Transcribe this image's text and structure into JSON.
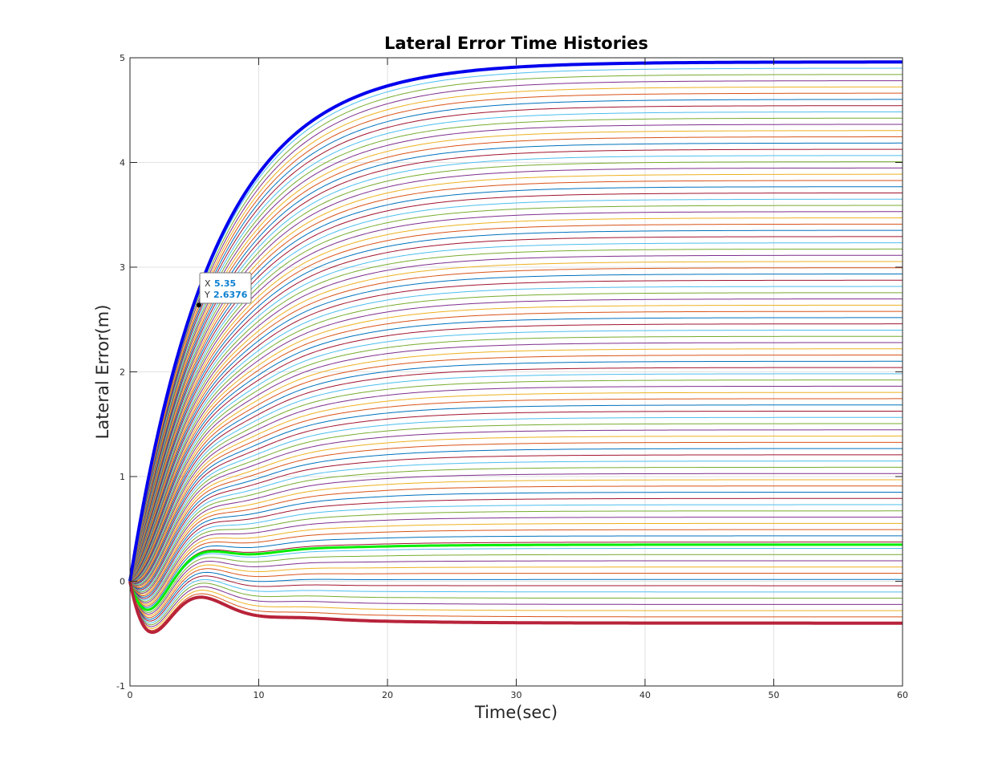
{
  "chart_data": {
    "type": "line",
    "title": "Lateral Error Time Histories",
    "xlabel": "Time(sec)",
    "ylabel": "Lateral Error(m)",
    "xlim": [
      0,
      60
    ],
    "ylim": [
      -1,
      5
    ],
    "xticks": [
      0,
      10,
      20,
      30,
      40,
      50,
      60
    ],
    "yticks": [
      -1,
      0,
      1,
      2,
      3,
      4,
      5
    ],
    "xtick_labels": [
      "0",
      "10",
      "20",
      "30",
      "40",
      "50",
      "60"
    ],
    "ytick_labels": [
      "-1",
      "0",
      "1",
      "2",
      "3",
      "4",
      "5"
    ],
    "grid": true,
    "legend": "none",
    "family": {
      "count": 91,
      "final_values_range": [
        -0.4,
        4.96
      ],
      "palette": [
        "#0072bd",
        "#d95319",
        "#edb120",
        "#7e2f8e",
        "#77ac30",
        "#4dbeee",
        "#a2142f"
      ]
    },
    "highlighted_series": [
      {
        "final_value": 4.96,
        "color": "#0000ee",
        "width": 4
      },
      {
        "final_value": 0.35,
        "color": "#00ee00",
        "width": 3
      },
      {
        "final_value": -0.4,
        "color": "#b8233a",
        "width": 4
      }
    ],
    "datatip": {
      "x_label": "X",
      "x_value": "5.35",
      "y_label": "Y",
      "y_value": "2.6376",
      "x": 5.35,
      "y": 2.6376
    }
  }
}
